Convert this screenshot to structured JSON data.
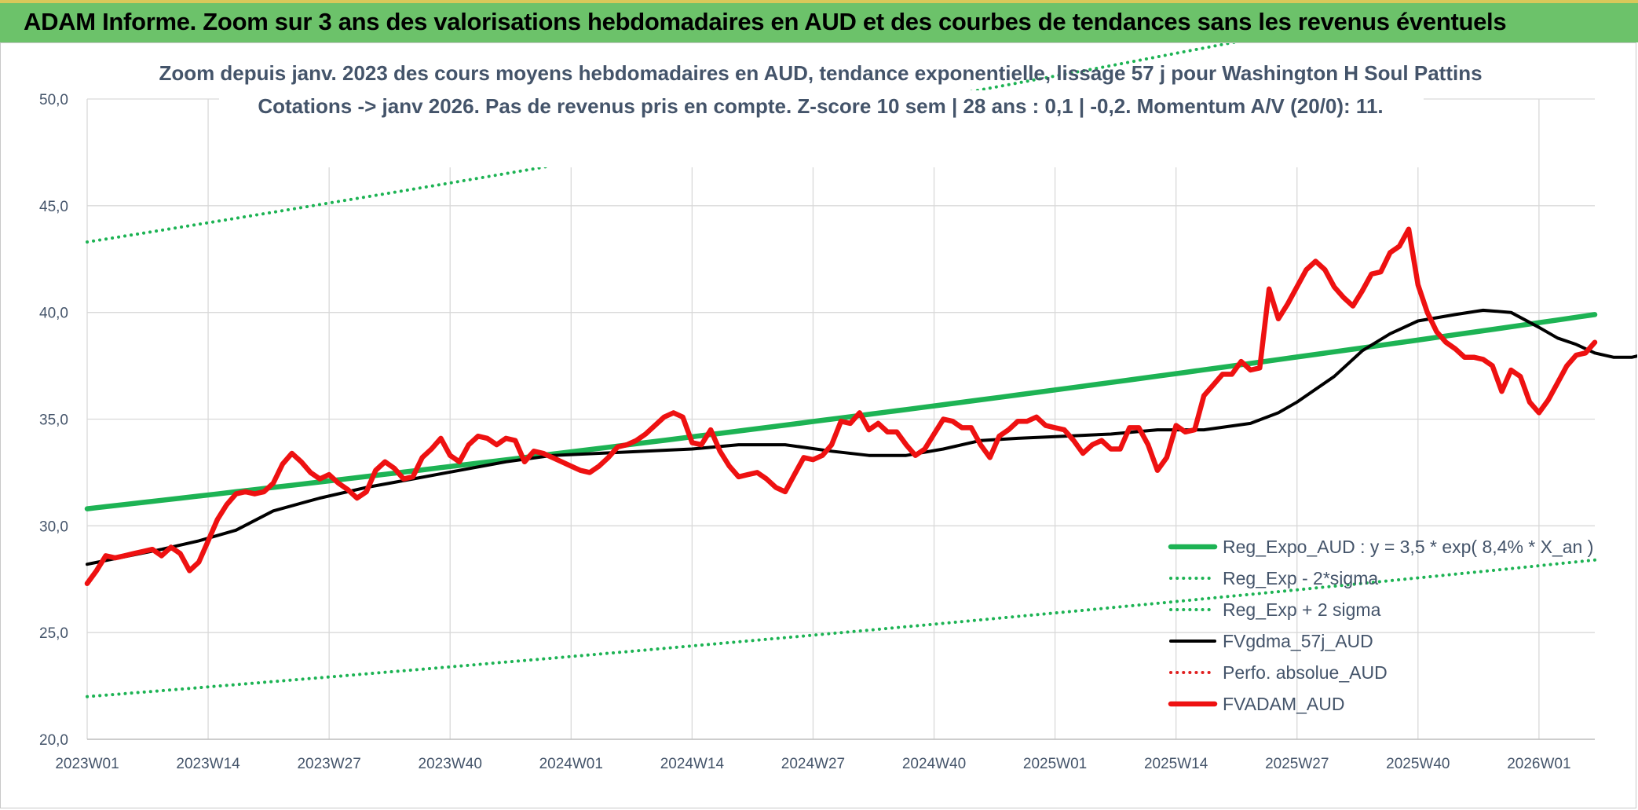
{
  "header": {
    "title": "ADAM Informe. Zoom sur 3 ans des valorisations hebdomadaires en AUD et des courbes de tendances sans les revenus éventuels"
  },
  "chart_data": {
    "type": "line",
    "title": "Zoom depuis janv. 2023 des cours moyens hebdomadaires en AUD, tendance exponentielle, lissage 57 j pour Washington H Soul Pattins",
    "subtitle": "Cotations -> janv 2026. Pas de revenus pris en compte. Z-score 10 sem | 28 ans : 0,1 | -0,2. Momentum A/V (20/0): 11.",
    "xlabel": "",
    "ylabel": "",
    "ylim": [
      20,
      50
    ],
    "yticks": [
      "20,0",
      "25,0",
      "30,0",
      "35,0",
      "40,0",
      "45,0",
      "50,0"
    ],
    "x_ticks": [
      "2023W01",
      "2023W14",
      "2023W27",
      "2023W40",
      "2024W01",
      "2024W14",
      "2024W27",
      "2024W40",
      "2025W01",
      "2025W14",
      "2025W27",
      "2025W40",
      "2026W01"
    ],
    "week_count": 162,
    "grid": true,
    "legend_position": "bottom-right",
    "series": [
      {
        "name": "Reg_Expo_AUD : y = 3,5 * exp( 8,4% *  X_an )",
        "color": "#1db354",
        "style": "solid-thick",
        "start": 30.8,
        "end": 39.9
      },
      {
        "name": "Reg_Exp - 2*sigma",
        "color": "#1db354",
        "style": "dotted",
        "start": 22.0,
        "end": 28.4
      },
      {
        "name": "Reg_Exp + 2 sigma",
        "color": "#1db354",
        "style": "dotted",
        "start": 43.3,
        "end": 56.0
      },
      {
        "name": "FVgdma_57j_AUD",
        "color": "#000000",
        "style": "solid",
        "points": [
          [
            0,
            28.2
          ],
          [
            8,
            28.9
          ],
          [
            12,
            29.3
          ],
          [
            16,
            29.8
          ],
          [
            20,
            30.7
          ],
          [
            25,
            31.3
          ],
          [
            30,
            31.8
          ],
          [
            35,
            32.2
          ],
          [
            40,
            32.6
          ],
          [
            45,
            33.0
          ],
          [
            50,
            33.3
          ],
          [
            55,
            33.4
          ],
          [
            60,
            33.5
          ],
          [
            65,
            33.6
          ],
          [
            70,
            33.8
          ],
          [
            75,
            33.8
          ],
          [
            80,
            33.5
          ],
          [
            84,
            33.3
          ],
          [
            88,
            33.3
          ],
          [
            92,
            33.6
          ],
          [
            96,
            34.0
          ],
          [
            100,
            34.1
          ],
          [
            105,
            34.2
          ],
          [
            110,
            34.3
          ],
          [
            115,
            34.5
          ],
          [
            120,
            34.5
          ],
          [
            125,
            34.8
          ],
          [
            128,
            35.3
          ],
          [
            130,
            35.8
          ],
          [
            134,
            37.0
          ],
          [
            137,
            38.2
          ],
          [
            140,
            39.0
          ],
          [
            143,
            39.6
          ],
          [
            147,
            39.9
          ],
          [
            150,
            40.1
          ],
          [
            153,
            40.0
          ],
          [
            156,
            39.3
          ],
          [
            158,
            38.8
          ],
          [
            160,
            38.5
          ],
          [
            162,
            38.1
          ],
          [
            164,
            37.9
          ],
          [
            166,
            37.9
          ],
          [
            168,
            38.1
          ],
          [
            172,
            38.3
          ]
        ]
      },
      {
        "name": "Perfo. absolue_AUD",
        "color": "#e02020",
        "style": "dotted",
        "points": []
      },
      {
        "name": "FVADAM_AUD",
        "color": "#ee1111",
        "style": "solid-thick",
        "points": [
          [
            0,
            27.3
          ],
          [
            1,
            27.9
          ],
          [
            2,
            28.6
          ],
          [
            3,
            28.5
          ],
          [
            4,
            28.6
          ],
          [
            5,
            28.7
          ],
          [
            6,
            28.8
          ],
          [
            7,
            28.9
          ],
          [
            8,
            28.6
          ],
          [
            9,
            29.0
          ],
          [
            10,
            28.7
          ],
          [
            11,
            27.9
          ],
          [
            12,
            28.3
          ],
          [
            13,
            29.3
          ],
          [
            14,
            30.3
          ],
          [
            15,
            31.0
          ],
          [
            16,
            31.5
          ],
          [
            17,
            31.6
          ],
          [
            18,
            31.5
          ],
          [
            19,
            31.6
          ],
          [
            20,
            32.0
          ],
          [
            21,
            32.9
          ],
          [
            22,
            33.4
          ],
          [
            23,
            33.0
          ],
          [
            24,
            32.5
          ],
          [
            25,
            32.2
          ],
          [
            26,
            32.4
          ],
          [
            27,
            32.0
          ],
          [
            28,
            31.7
          ],
          [
            29,
            31.3
          ],
          [
            30,
            31.6
          ],
          [
            31,
            32.6
          ],
          [
            32,
            33.0
          ],
          [
            33,
            32.7
          ],
          [
            34,
            32.2
          ],
          [
            35,
            32.3
          ],
          [
            36,
            33.2
          ],
          [
            37,
            33.6
          ],
          [
            38,
            34.1
          ],
          [
            39,
            33.3
          ],
          [
            40,
            33.0
          ],
          [
            41,
            33.8
          ],
          [
            42,
            34.2
          ],
          [
            43,
            34.1
          ],
          [
            44,
            33.8
          ],
          [
            45,
            34.1
          ],
          [
            46,
            34.0
          ],
          [
            47,
            33.0
          ],
          [
            48,
            33.5
          ],
          [
            49,
            33.4
          ],
          [
            50,
            33.2
          ],
          [
            51,
            33.0
          ],
          [
            52,
            32.8
          ],
          [
            53,
            32.6
          ],
          [
            54,
            32.5
          ],
          [
            55,
            32.8
          ],
          [
            56,
            33.2
          ],
          [
            57,
            33.7
          ],
          [
            58,
            33.8
          ],
          [
            59,
            34.0
          ],
          [
            60,
            34.3
          ],
          [
            61,
            34.7
          ],
          [
            62,
            35.1
          ],
          [
            63,
            35.3
          ],
          [
            64,
            35.1
          ],
          [
            65,
            33.9
          ],
          [
            66,
            33.8
          ],
          [
            67,
            34.5
          ],
          [
            68,
            33.5
          ],
          [
            69,
            32.8
          ],
          [
            70,
            32.3
          ],
          [
            71,
            32.4
          ],
          [
            72,
            32.5
          ],
          [
            73,
            32.2
          ],
          [
            74,
            31.8
          ],
          [
            75,
            31.6
          ],
          [
            76,
            32.4
          ],
          [
            77,
            33.2
          ],
          [
            78,
            33.1
          ],
          [
            79,
            33.3
          ],
          [
            80,
            33.8
          ],
          [
            81,
            34.9
          ],
          [
            82,
            34.8
          ],
          [
            83,
            35.3
          ],
          [
            84,
            34.5
          ],
          [
            85,
            34.8
          ],
          [
            86,
            34.4
          ],
          [
            87,
            34.4
          ],
          [
            88,
            33.8
          ],
          [
            89,
            33.3
          ],
          [
            90,
            33.6
          ],
          [
            91,
            34.3
          ],
          [
            92,
            35.0
          ],
          [
            93,
            34.9
          ],
          [
            94,
            34.6
          ],
          [
            95,
            34.6
          ],
          [
            96,
            33.8
          ],
          [
            97,
            33.2
          ],
          [
            98,
            34.2
          ],
          [
            99,
            34.5
          ],
          [
            100,
            34.9
          ],
          [
            101,
            34.9
          ],
          [
            102,
            35.1
          ],
          [
            103,
            34.7
          ],
          [
            104,
            34.6
          ],
          [
            105,
            34.5
          ],
          [
            106,
            34.0
          ],
          [
            107,
            33.4
          ],
          [
            108,
            33.8
          ],
          [
            109,
            34.0
          ],
          [
            110,
            33.6
          ],
          [
            111,
            33.6
          ],
          [
            112,
            34.6
          ],
          [
            113,
            34.6
          ],
          [
            114,
            33.8
          ],
          [
            115,
            32.6
          ],
          [
            116,
            33.2
          ],
          [
            117,
            34.7
          ],
          [
            118,
            34.4
          ],
          [
            119,
            34.5
          ],
          [
            120,
            36.1
          ],
          [
            121,
            36.6
          ],
          [
            122,
            37.1
          ],
          [
            123,
            37.1
          ],
          [
            124,
            37.7
          ],
          [
            125,
            37.3
          ],
          [
            126,
            37.4
          ],
          [
            127,
            41.1
          ],
          [
            128,
            39.7
          ],
          [
            129,
            40.4
          ],
          [
            130,
            41.2
          ],
          [
            131,
            42.0
          ],
          [
            132,
            42.4
          ],
          [
            133,
            42.0
          ],
          [
            134,
            41.2
          ],
          [
            135,
            40.7
          ],
          [
            136,
            40.3
          ],
          [
            137,
            41.0
          ],
          [
            138,
            41.8
          ],
          [
            139,
            41.9
          ],
          [
            140,
            42.8
          ],
          [
            141,
            43.1
          ],
          [
            142,
            43.9
          ],
          [
            143,
            41.3
          ],
          [
            144,
            40.0
          ],
          [
            145,
            39.1
          ],
          [
            146,
            38.6
          ],
          [
            147,
            38.3
          ],
          [
            148,
            37.9
          ],
          [
            149,
            37.9
          ],
          [
            150,
            37.8
          ],
          [
            151,
            37.5
          ],
          [
            152,
            36.3
          ],
          [
            153,
            37.3
          ],
          [
            154,
            37.0
          ],
          [
            155,
            35.8
          ],
          [
            156,
            35.3
          ],
          [
            157,
            35.9
          ],
          [
            158,
            36.7
          ],
          [
            159,
            37.5
          ],
          [
            160,
            38.0
          ],
          [
            161,
            38.1
          ],
          [
            162,
            38.6
          ]
        ]
      }
    ]
  }
}
